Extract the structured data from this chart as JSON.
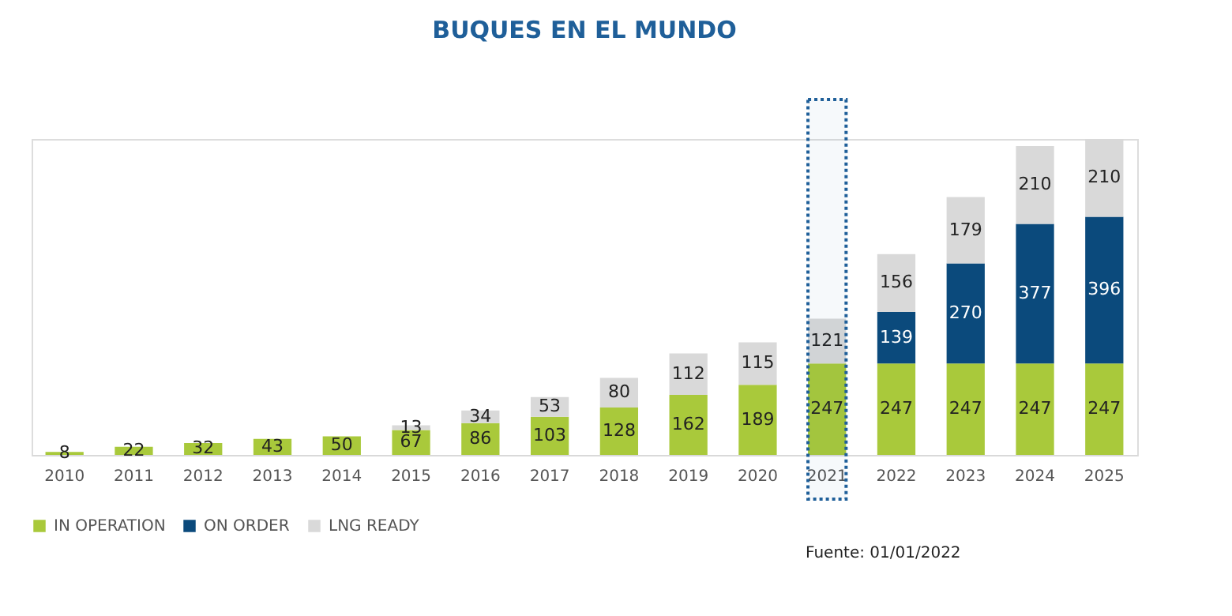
{
  "chart_data": {
    "type": "bar",
    "title": "BUQUES EN EL MUNDO",
    "stacked": true,
    "data_labels": true,
    "legend": "bottom",
    "grid": false,
    "categories": [
      "2010",
      "2011",
      "2012",
      "2013",
      "2014",
      "2015",
      "2016",
      "2017",
      "2018",
      "2019",
      "2020",
      "2021",
      "2022",
      "2023",
      "2024",
      "2025"
    ],
    "series": [
      {
        "name": "IN OPERATION",
        "color": "#a9c93b",
        "values": [
          8,
          22,
          32,
          43,
          50,
          67,
          86,
          103,
          128,
          162,
          189,
          247,
          247,
          247,
          247,
          247
        ]
      },
      {
        "name": "ON ORDER",
        "color": "#0b4a7c",
        "values": [
          null,
          null,
          null,
          null,
          null,
          null,
          null,
          null,
          null,
          null,
          null,
          null,
          139,
          270,
          377,
          396
        ]
      },
      {
        "name": "LNG READY",
        "color": "#d9d9d9",
        "values": [
          null,
          null,
          null,
          null,
          null,
          13,
          34,
          53,
          80,
          112,
          115,
          121,
          156,
          179,
          210,
          210
        ]
      }
    ],
    "bands": [
      {
        "axis": "x",
        "from": "2021",
        "to": "2021",
        "label": null,
        "color": "#1f5f99"
      }
    ],
    "annotations": [
      "Fuente: 01/01/2022"
    ]
  }
}
